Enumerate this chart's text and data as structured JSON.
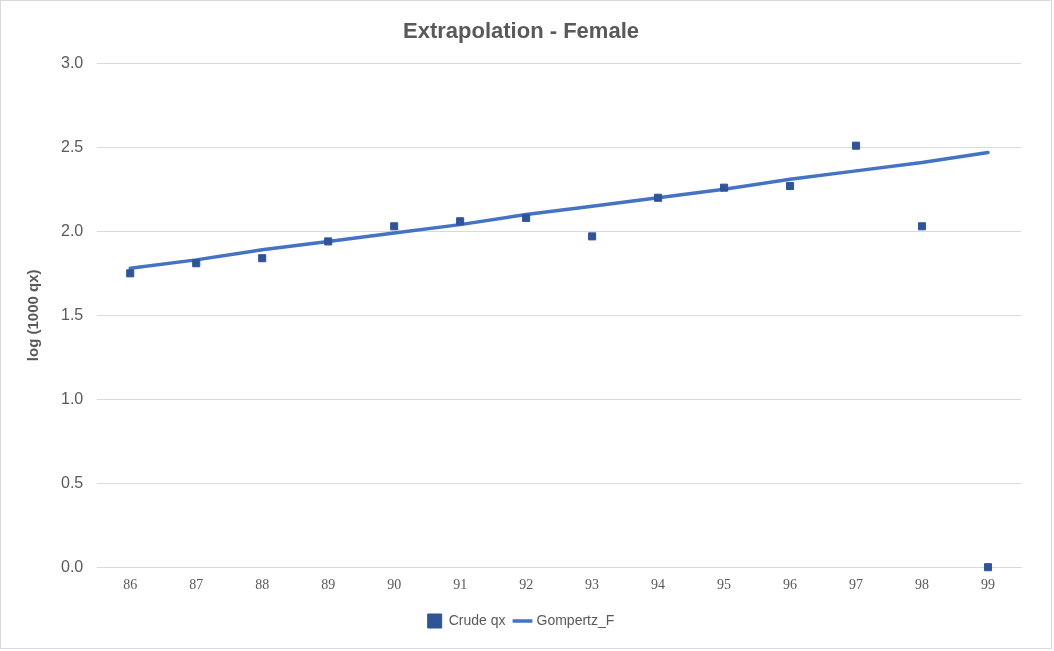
{
  "chart_data": {
    "type": "line",
    "title": "Extrapolation - Female",
    "ylabel": "log (1000 qx)",
    "categories": [
      "86",
      "87",
      "88",
      "89",
      "90",
      "91",
      "92",
      "93",
      "94",
      "95",
      "96",
      "97",
      "98",
      "99"
    ],
    "series": [
      {
        "name": "Crude qx",
        "type": "scatter",
        "color": "#2f5597",
        "marker": "square",
        "values": [
          1.75,
          1.81,
          1.84,
          1.94,
          2.03,
          2.06,
          2.08,
          1.97,
          2.2,
          2.26,
          2.27,
          2.51,
          2.03,
          0.0
        ]
      },
      {
        "name": "Gompertz_F",
        "color": "#4472c4",
        "marker": "none",
        "line_style": "solid",
        "values": [
          1.78,
          1.83,
          1.89,
          1.94,
          1.99,
          2.04,
          2.1,
          2.15,
          2.2,
          2.25,
          2.31,
          2.36,
          2.41,
          2.47
        ]
      }
    ],
    "ylim": [
      0,
      3
    ],
    "yticks": [
      {
        "value": 0,
        "label": "0.0"
      },
      0.5,
      {
        "value": 1,
        "label": "1.0"
      },
      1.5,
      {
        "value": 2,
        "label": "2.0"
      },
      2.5,
      {
        "value": 3,
        "label": "3.0"
      }
    ],
    "grid": "y",
    "legend": "bottom"
  }
}
